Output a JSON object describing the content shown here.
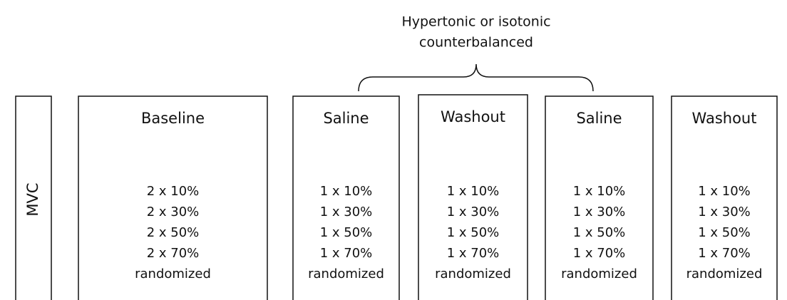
{
  "bracket": {
    "label": [
      "Hypertonic or isotonic",
      "counterbalanced"
    ]
  },
  "boxes": [
    {
      "title": "MVC"
    },
    {
      "title": "Baseline",
      "lines": [
        "2 x 10%",
        "2 x 30%",
        "2 x 50%",
        "2 x 70%",
        "randomized"
      ]
    },
    {
      "title": "Saline",
      "lines": [
        "1 x 10%",
        "1 x 30%",
        "1 x 50%",
        "1 x 70%",
        "randomized"
      ]
    },
    {
      "title": "Washout",
      "lines": [
        "1 x 10%",
        "1 x 30%",
        "1 x 50%",
        "1 x 70%",
        "randomized"
      ]
    },
    {
      "title": "Saline",
      "lines": [
        "1 x 10%",
        "1 x 30%",
        "1 x 50%",
        "1 x 70%",
        "randomized"
      ]
    },
    {
      "title": "Washout",
      "lines": [
        "1 x 10%",
        "1 x 30%",
        "1 x 50%",
        "1 x 70%",
        "randomized"
      ]
    }
  ]
}
